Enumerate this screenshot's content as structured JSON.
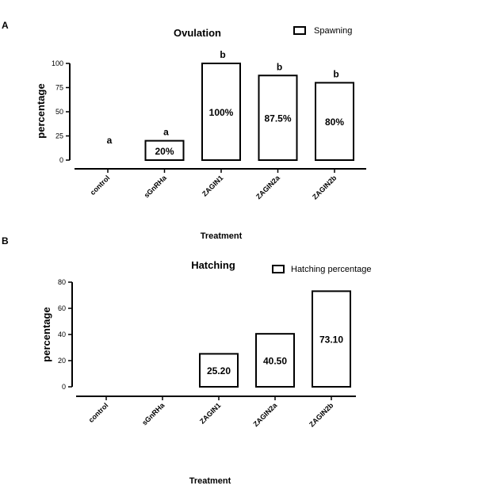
{
  "panels": [
    {
      "letter": "A",
      "legend": "Spawning"
    },
    {
      "letter": "B",
      "legend": "Hatching percentage"
    }
  ],
  "chart_data": [
    {
      "type": "bar",
      "title": "Ovulation",
      "xlabel": "Treatment",
      "ylabel": "percentage",
      "categories": [
        "control",
        "sGnRHa",
        "ZAGIN1",
        "ZAGIN2a",
        "ZAGIN2b"
      ],
      "series": [
        {
          "name": "Spawning",
          "values": [
            0,
            20,
            100,
            87.5,
            80
          ]
        }
      ],
      "data_labels": [
        "",
        "20%",
        "100%",
        "87.5%",
        "80%"
      ],
      "significance": [
        "a",
        "a",
        "b",
        "b",
        "b"
      ],
      "ylim": [
        0,
        100
      ],
      "yticks": [
        "0",
        "25",
        "50",
        "75",
        "100"
      ],
      "legend_position": "top-right",
      "grid": false
    },
    {
      "type": "bar",
      "title": "Hatching",
      "xlabel": "Treatment",
      "ylabel": "percentage",
      "categories": [
        "control",
        "sGnRHa",
        "ZAGIN1",
        "ZAGIN2a",
        "ZAGIN2b"
      ],
      "series": [
        {
          "name": "Hatching percentage",
          "values": [
            0,
            0,
            25.2,
            40.5,
            73.1
          ]
        }
      ],
      "data_labels": [
        "",
        "",
        "25.20",
        "40.50",
        "73.10"
      ],
      "ylim": [
        0,
        80
      ],
      "yticks": [
        "0",
        "20",
        "40",
        "60",
        "80"
      ],
      "legend_position": "top-right",
      "grid": false
    }
  ]
}
